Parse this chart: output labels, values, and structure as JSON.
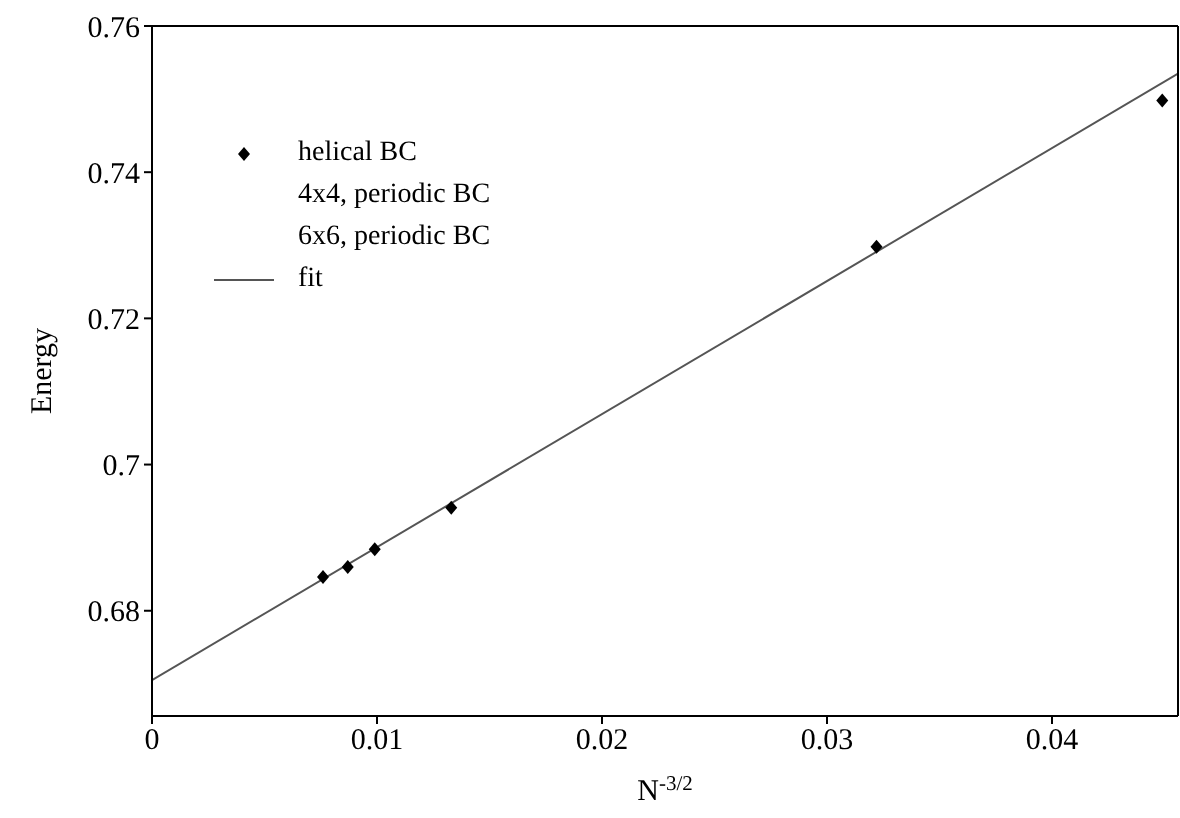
{
  "chart_data": {
    "type": "scatter",
    "xlabel": "N$^{-3/2}$",
    "ylabel": "Energy",
    "xlim": [
      0,
      0.0456
    ],
    "ylim": [
      0.6656,
      0.76
    ],
    "xticks": [
      0,
      0.01,
      0.02,
      0.03,
      0.04
    ],
    "yticks": [
      0.68,
      0.7,
      0.72,
      0.74,
      0.76
    ],
    "legend": "top left",
    "series": [
      {
        "name": "helical BC",
        "marker": "diamond",
        "color": "#000000",
        "x": [
          0.0076,
          0.0087,
          0.0099,
          0.0133,
          0.0322,
          0.0449
        ],
        "values": [
          0.6846,
          0.686,
          0.6884,
          0.6941,
          0.7298,
          0.7498
        ]
      },
      {
        "name": "4x4, periodic BC",
        "marker": "none"
      },
      {
        "name": "6x6, periodic BC",
        "marker": "none"
      },
      {
        "name": "fit",
        "type": "line",
        "color": "#555555",
        "x": [
          0,
          0.0456
        ],
        "values": [
          0.6705,
          0.7535
        ]
      }
    ]
  }
}
